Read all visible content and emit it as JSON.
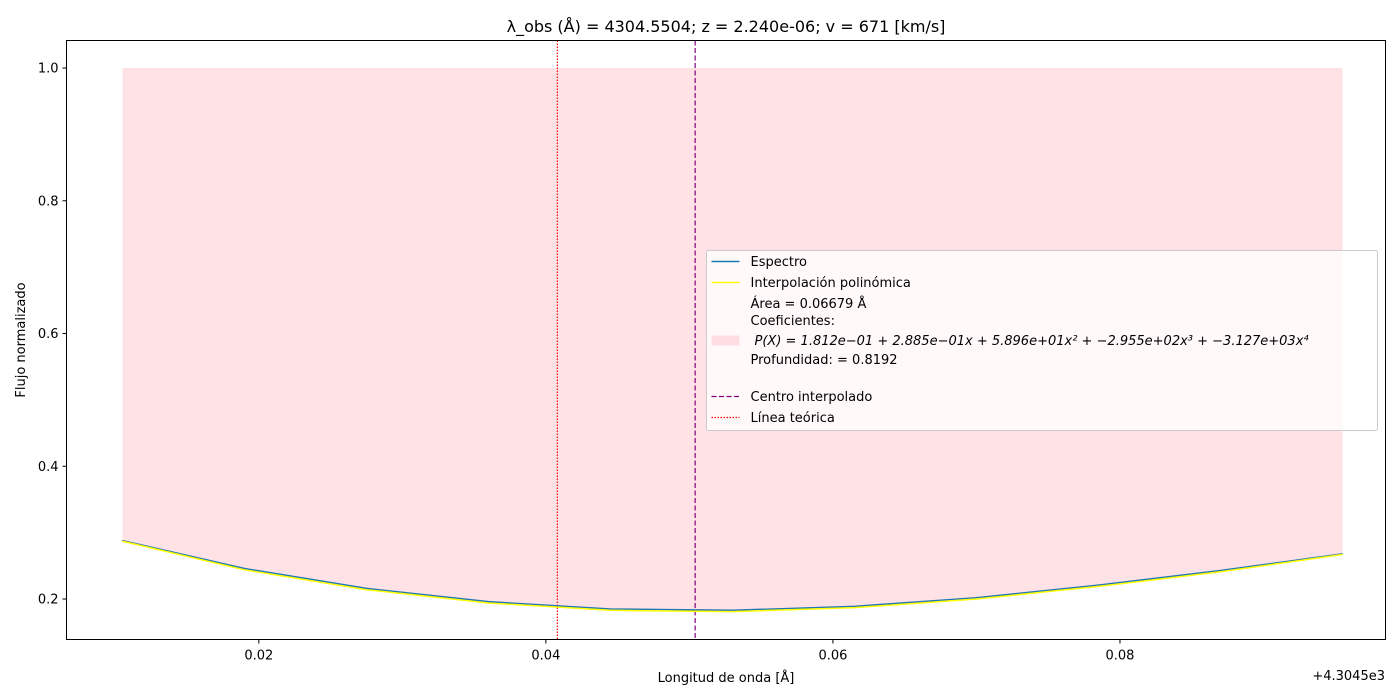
{
  "chart_data": {
    "type": "line",
    "title": "λ_obs (Å) = 4304.5504; z = 2.240e-06; v = 671 [km/s]",
    "xlabel": "Longitud de onda [Å]",
    "ylabel": "Flujo normalizado",
    "x_offset_label": "+4.3045e3",
    "x_offset": 4304.5,
    "xlim": [
      4304.5066,
      4304.5985
    ],
    "ylim": [
      0.139,
      1.0415
    ],
    "x_ticks": [
      4304.52,
      4304.54,
      4304.56,
      4304.58
    ],
    "x_tick_labels": [
      "0.02",
      "0.04",
      "0.06",
      "0.08"
    ],
    "y_ticks": [
      0.2,
      0.4,
      0.6,
      0.8,
      1.0
    ],
    "y_tick_labels": [
      "0.2",
      "0.4",
      "0.6",
      "0.8",
      "1.0"
    ],
    "grid": false,
    "legend_position": "center-right",
    "series": [
      {
        "name": "Espectro",
        "color": "#1f77b4",
        "style": "solid",
        "x": [
          4304.5105,
          4304.519,
          4304.5275,
          4304.536,
          4304.5445,
          4304.553,
          4304.5615,
          4304.57,
          4304.5785,
          4304.587,
          4304.5955
        ],
        "y": [
          0.288,
          0.246,
          0.216,
          0.196,
          0.185,
          0.183,
          0.189,
          0.202,
          0.221,
          0.243,
          0.268
        ]
      },
      {
        "name": "Interpolación polinómica",
        "color": "#ffff00",
        "style": "solid",
        "x": [
          4304.5105,
          4304.519,
          4304.5275,
          4304.536,
          4304.5445,
          4304.553,
          4304.5615,
          4304.57,
          4304.5785,
          4304.587,
          4304.5955
        ],
        "y": [
          0.287,
          0.244,
          0.214,
          0.194,
          0.183,
          0.181,
          0.187,
          0.2,
          0.219,
          0.241,
          0.267
        ]
      }
    ],
    "fill_region": {
      "color": "#ffb6c1",
      "opacity": 0.4,
      "x_range": [
        4304.5105,
        4304.5955
      ],
      "top": 1.0,
      "bottom_series": "Interpolación polinómica"
    },
    "vlines": [
      {
        "name": "Centro interpolado",
        "x": 4304.5504,
        "color": "#800080",
        "style": "dashed"
      },
      {
        "name": "Línea teórica",
        "x": 4304.5408,
        "color": "#ff0000",
        "style": "dotted"
      }
    ],
    "legend": {
      "entries": [
        {
          "label": "Espectro",
          "kind": "line",
          "color": "#1f77b4"
        },
        {
          "label": "Interpolación polinómica",
          "kind": "line",
          "color": "#ffff00"
        },
        {
          "label": "Área = 0.06679 Å",
          "kind": "text"
        },
        {
          "label": "Coeficientes:",
          "kind": "text"
        },
        {
          "label": "P(X) = 1.812e−01 + 2.885e−01x + 5.896e+01x² + −2.955e+02x³ + −3.127e+03x⁴",
          "kind": "patch",
          "color": "#ffb6c1"
        },
        {
          "label": "Profundidad: = 0.8192",
          "kind": "text"
        },
        {
          "label": "",
          "kind": "text"
        },
        {
          "label": "Centro interpolado",
          "kind": "dashed",
          "color": "#800080"
        },
        {
          "label": "Línea teórica",
          "kind": "dotted",
          "color": "#ff0000"
        }
      ]
    }
  }
}
